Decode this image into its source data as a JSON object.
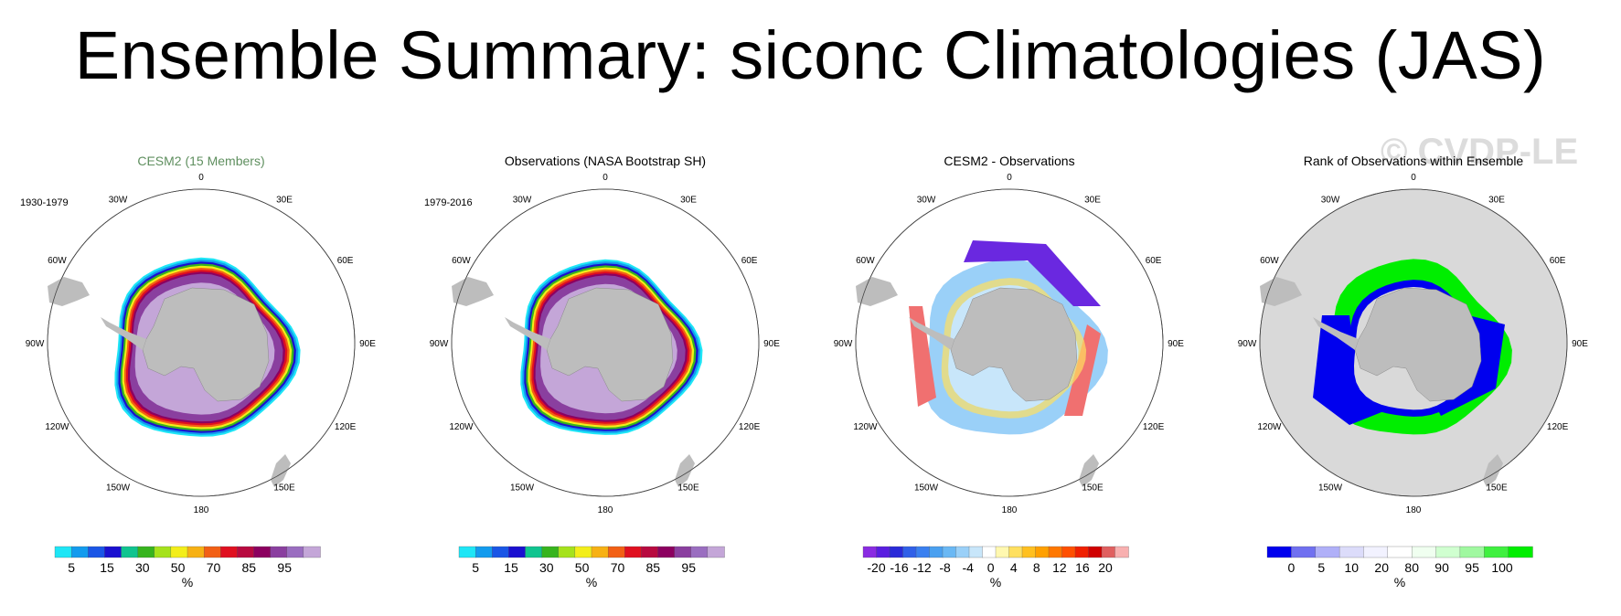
{
  "title": "Ensemble Summary: siconc Climatologies (JAS)",
  "watermark": "© CVDP-LE",
  "colors": {
    "land": "#bdbdbd",
    "ocean": "#ffffff",
    "rank_background": "#d9d9d9",
    "model_title": "#5f8f5f"
  },
  "coordinate_labels": {
    "longitudes": [
      "0",
      "30E",
      "60E",
      "90E",
      "120E",
      "150E",
      "180",
      "150W",
      "120W",
      "90W",
      "60W",
      "30W"
    ]
  },
  "chart_data": [
    {
      "type": "heatmap",
      "title": "CESM2 (15 Members)",
      "period": "1930-1979",
      "projection": "south-polar-stereographic",
      "xlabel": "",
      "ylabel": "",
      "colorbar": {
        "unit": "%",
        "colors": [
          "#1ee6f6",
          "#139bee",
          "#1a56e6",
          "#1a10d0",
          "#10c48f",
          "#37b41e",
          "#a5e21c",
          "#f3ee1a",
          "#f7b114",
          "#f26015",
          "#e01020",
          "#b80a40",
          "#8c0060",
          "#8a3f9f",
          "#9a6ec0",
          "#c4a6d8"
        ],
        "tick_labels": [
          "5",
          "15",
          "30",
          "50",
          "70",
          "85",
          "95"
        ]
      },
      "field": {
        "ice_edge_scale": 1.0,
        "inner_value": "95-100",
        "edge_value": "5"
      }
    },
    {
      "type": "heatmap",
      "title": "Observations (NASA Bootstrap SH)",
      "period": "1979-2016",
      "projection": "south-polar-stereographic",
      "xlabel": "",
      "ylabel": "",
      "colorbar": {
        "unit": "%",
        "colors": [
          "#1ee6f6",
          "#139bee",
          "#1a56e6",
          "#1a10d0",
          "#10c48f",
          "#37b41e",
          "#a5e21c",
          "#f3ee1a",
          "#f7b114",
          "#f26015",
          "#e01020",
          "#b80a40",
          "#8c0060",
          "#8a3f9f",
          "#9a6ec0",
          "#c4a6d8"
        ],
        "tick_labels": [
          "5",
          "15",
          "30",
          "50",
          "70",
          "85",
          "95"
        ]
      },
      "field": {
        "ice_edge_scale": 0.98,
        "inner_value": "95-100",
        "edge_value": "5"
      }
    },
    {
      "type": "heatmap",
      "title": "CESM2 - Observations",
      "period": "",
      "projection": "south-polar-stereographic",
      "xlabel": "",
      "ylabel": "",
      "colorbar": {
        "unit": "%",
        "colors": [
          "#8a2be2",
          "#5a1ee0",
          "#2a2ad8",
          "#3060e8",
          "#3a80f0",
          "#4aa0f0",
          "#6ab8f4",
          "#9ad0f8",
          "#c8e6fa",
          "#ffffff",
          "#fff8b0",
          "#ffe060",
          "#ffc020",
          "#ffa000",
          "#ff7800",
          "#ff5000",
          "#f02000",
          "#d00000",
          "#e06060",
          "#f8b0b0"
        ],
        "tick_labels": [
          "-20",
          "-16",
          "-12",
          "-8",
          "-4",
          "0",
          "4",
          "8",
          "12",
          "16",
          "20"
        ]
      },
      "field": {
        "ice_edge_scale": 1.0
      }
    },
    {
      "type": "heatmap",
      "title": "Rank of Observations within Ensemble",
      "period": "",
      "projection": "south-polar-stereographic",
      "xlabel": "",
      "ylabel": "",
      "colorbar": {
        "unit": "%",
        "colors": [
          "#0000ee",
          "#7070f0",
          "#b0b0f8",
          "#dcdcfa",
          "#f2f2ff",
          "#ffffff",
          "#f0fff0",
          "#d0ffd0",
          "#a0f8a0",
          "#40f040",
          "#00ee00"
        ],
        "tick_labels": [
          "0",
          "5",
          "10",
          "20",
          "80",
          "90",
          "95",
          "100"
        ]
      },
      "field": {
        "ice_edge_scale": 1.0
      }
    }
  ]
}
